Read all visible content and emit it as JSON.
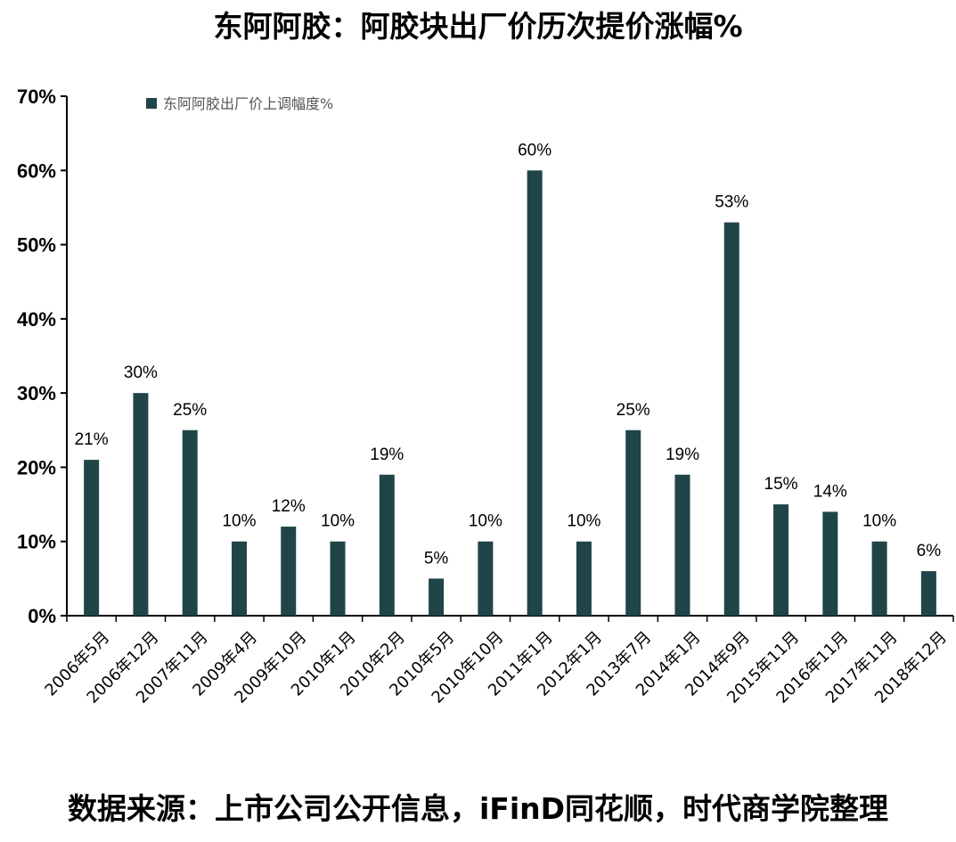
{
  "title": "东阿阿胶：阿胶块出厂价历次提价涨幅%",
  "source": "数据来源：上市公司公开信息，iFinD同花顺，时代商学院整理",
  "chart_data": {
    "type": "bar",
    "categories": [
      "2006年5月",
      "2006年12月",
      "2007年11月",
      "2009年4月",
      "2009年10月",
      "2010年1月",
      "2010年2月",
      "2010年5月",
      "2010年10月",
      "2011年1月",
      "2012年1月",
      "2013年7月",
      "2014年1月",
      "2014年9月",
      "2015年11月",
      "2016年11月",
      "2017年11月",
      "2018年12月"
    ],
    "series": [
      {
        "name": "东阿阿胶出厂价上调幅度%",
        "values": [
          21,
          30,
          25,
          10,
          12,
          10,
          19,
          5,
          10,
          60,
          10,
          25,
          19,
          53,
          15,
          14,
          10,
          6
        ],
        "labels": [
          "21%",
          "30%",
          "25%",
          "10%",
          "12%",
          "10%",
          "19%",
          "5%",
          "10%",
          "60%",
          "10%",
          "25%",
          "19%",
          "53%",
          "15%",
          "14%",
          "10%",
          "6%"
        ],
        "color": "#1f4549"
      }
    ],
    "ylim": [
      0,
      70
    ],
    "yticks": [
      "0%",
      "10%",
      "20%",
      "30%",
      "40%",
      "50%",
      "60%",
      "70%"
    ],
    "xlabel": "",
    "ylabel": "",
    "grid": false,
    "legend": "top-left"
  }
}
